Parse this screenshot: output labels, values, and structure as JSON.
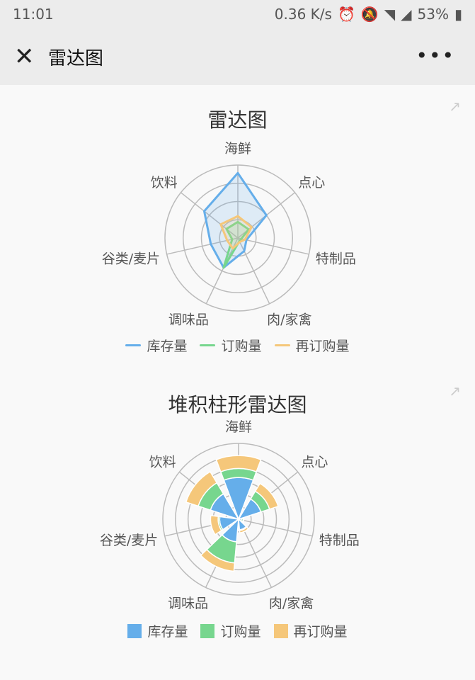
{
  "status_bar": {
    "time": "11:01",
    "speed": "0.36 K/s",
    "battery": "53%"
  },
  "header": {
    "title": "雷达图",
    "close_icon": "close-icon",
    "more_icon": "more-icon"
  },
  "colors": {
    "inventory": "#65aeea",
    "orders": "#77d68e",
    "reorder": "#f5c77a",
    "grid": "#bbbbbb"
  },
  "charts": [
    {
      "title": "雷达图",
      "type": "radar",
      "legend": [
        "库存量",
        "订购量",
        "再订购量"
      ]
    },
    {
      "title": "堆积柱形雷达图",
      "type": "stacked-polar-bar",
      "legend": [
        "库存量",
        "订购量",
        "再订购量"
      ]
    }
  ],
  "chart_data": [
    {
      "type": "radar",
      "title": "雷达图",
      "categories": [
        "海鲜",
        "点心",
        "特制品",
        "肉/家禽",
        "调味品",
        "谷类/麦片",
        "饮料"
      ],
      "max": 100,
      "series": [
        {
          "name": "库存量",
          "values": [
            89,
            50,
            12,
            20,
            45,
            38,
            59
          ]
        },
        {
          "name": "订购量",
          "values": [
            22,
            19,
            5,
            5,
            45,
            8,
            20
          ]
        },
        {
          "name": "再订购量",
          "values": [
            30,
            24,
            10,
            6,
            16,
            15,
            30
          ]
        }
      ],
      "legend": "bottom"
    },
    {
      "type": "bar",
      "polar": true,
      "stacked": true,
      "title": "堆积柱形雷达图",
      "categories": [
        "海鲜",
        "点心",
        "特制品",
        "肉/家禽",
        "调味品",
        "谷类/麦片",
        "饮料"
      ],
      "max": 100,
      "series": [
        {
          "name": "库存量",
          "values": [
            55,
            31,
            4,
            14,
            30,
            25,
            39
          ]
        },
        {
          "name": "订购量",
          "values": [
            12,
            12,
            2,
            1,
            28,
            2,
            17
          ]
        },
        {
          "name": "再订购量",
          "values": [
            17,
            12,
            1,
            3,
            11,
            10,
            17
          ]
        }
      ],
      "legend": "bottom"
    }
  ]
}
